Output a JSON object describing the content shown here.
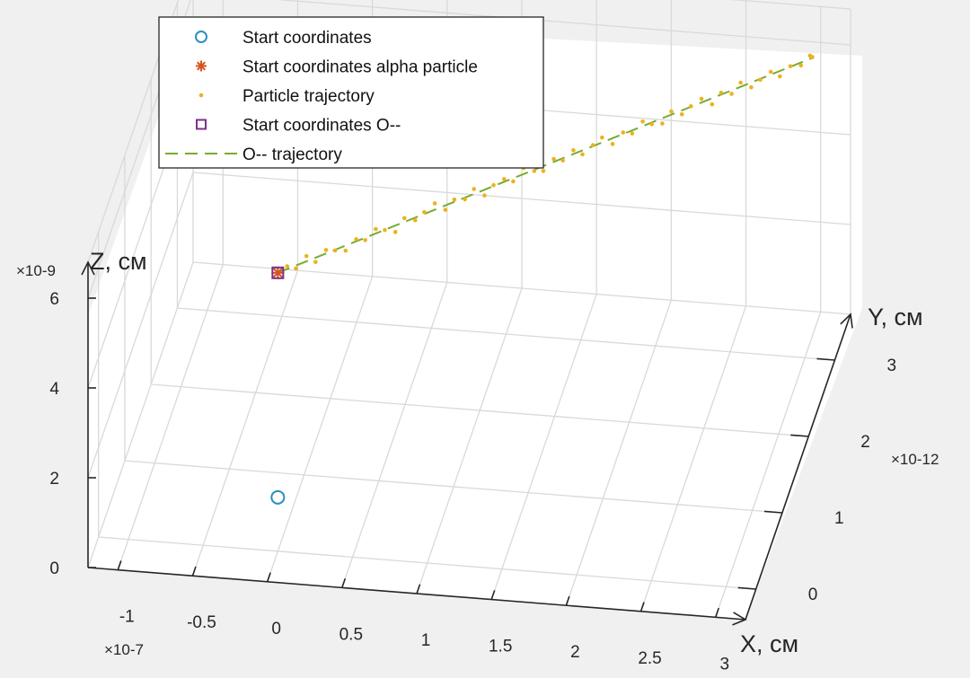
{
  "chart_data": {
    "type": "scatter",
    "projection": "3d",
    "axes": {
      "x": {
        "label": "X, см",
        "exponent": "×10-7",
        "ticks": [
          -1,
          -0.5,
          0,
          0.5,
          1,
          1.5,
          2,
          2.5,
          3
        ],
        "tick_labels": [
          "-1",
          "-0.5",
          "0",
          "0.5",
          "1",
          "1.5",
          "2",
          "2.5",
          "3"
        ],
        "lim": [
          -1.2,
          3.2
        ]
      },
      "y": {
        "label": "Y, см",
        "exponent": "×10-12",
        "ticks": [
          0,
          1,
          2,
          3
        ],
        "tick_labels": [
          "0",
          "1",
          "2",
          "3"
        ],
        "lim": [
          -0.4,
          3.6
        ]
      },
      "z": {
        "label": "Z, см",
        "exponent": "×10-9",
        "ticks": [
          0,
          2,
          4,
          6
        ],
        "tick_labels": [
          "0",
          "2",
          "4",
          "6"
        ],
        "lim": [
          0,
          6.8
        ]
      }
    },
    "grid": true,
    "legend_position": "top-left",
    "series": [
      {
        "name": "Start coordinates",
        "marker": "circle",
        "color": "#2a8fbf",
        "points": [
          [
            0,
            0,
            1.2
          ]
        ]
      },
      {
        "name": "Start coordinates alpha particle",
        "marker": "asterisk",
        "color": "#d9531e",
        "points": [
          [
            0,
            0,
            6.2
          ]
        ]
      },
      {
        "name": "Particle trajectory",
        "marker": "dot",
        "color": "#edb120",
        "points": [
          [
            0.05,
            0.07,
            6.24
          ],
          [
            0.1,
            0.12,
            6.12
          ],
          [
            0.16,
            0.18,
            6.31
          ],
          [
            0.21,
            0.24,
            6.09
          ],
          [
            0.27,
            0.3,
            6.27
          ],
          [
            0.32,
            0.36,
            6.17
          ],
          [
            0.38,
            0.42,
            6.08
          ],
          [
            0.44,
            0.48,
            6.25
          ],
          [
            0.49,
            0.54,
            6.14
          ],
          [
            0.55,
            0.6,
            6.3
          ],
          [
            0.6,
            0.66,
            6.19
          ],
          [
            0.66,
            0.72,
            6.06
          ],
          [
            0.71,
            0.78,
            6.28
          ],
          [
            0.77,
            0.85,
            6.13
          ],
          [
            0.82,
            0.91,
            6.22
          ],
          [
            0.88,
            0.97,
            6.33
          ],
          [
            0.94,
            1.03,
            6.1
          ],
          [
            0.99,
            1.09,
            6.24
          ],
          [
            1.05,
            1.15,
            6.16
          ],
          [
            1.1,
            1.21,
            6.3
          ],
          [
            1.16,
            1.27,
            6.07
          ],
          [
            1.21,
            1.33,
            6.21
          ],
          [
            1.27,
            1.39,
            6.26
          ],
          [
            1.32,
            1.45,
            6.12
          ],
          [
            1.38,
            1.51,
            6.33
          ],
          [
            1.44,
            1.57,
            6.18
          ],
          [
            1.49,
            1.63,
            6.09
          ],
          [
            1.55,
            1.69,
            6.27
          ],
          [
            1.6,
            1.75,
            6.15
          ],
          [
            1.66,
            1.81,
            6.29
          ],
          [
            1.71,
            1.87,
            6.11
          ],
          [
            1.77,
            1.93,
            6.23
          ],
          [
            1.82,
            1.99,
            6.31
          ],
          [
            1.88,
            2.05,
            6.08
          ],
          [
            1.94,
            2.11,
            6.25
          ],
          [
            1.99,
            2.17,
            6.14
          ],
          [
            2.05,
            2.23,
            6.32
          ],
          [
            2.1,
            2.29,
            6.17
          ],
          [
            2.16,
            2.35,
            6.1
          ],
          [
            2.21,
            2.41,
            6.28
          ],
          [
            2.27,
            2.47,
            6.13
          ],
          [
            2.32,
            2.53,
            6.22
          ],
          [
            2.38,
            2.59,
            6.3
          ],
          [
            2.44,
            2.65,
            6.09
          ],
          [
            2.49,
            2.71,
            6.26
          ],
          [
            2.55,
            2.77,
            6.15
          ],
          [
            2.6,
            2.83,
            6.31
          ],
          [
            2.66,
            2.89,
            6.12
          ],
          [
            2.71,
            2.95,
            6.2
          ],
          [
            2.77,
            3.01,
            6.29
          ],
          [
            2.82,
            3.07,
            6.1
          ],
          [
            2.88,
            3.13,
            6.24
          ],
          [
            2.94,
            3.19,
            6.17
          ],
          [
            2.99,
            3.25,
            6.3
          ],
          [
            3.0,
            3.28,
            6.22
          ]
        ]
      },
      {
        "name": "Start coordinates O--",
        "marker": "square",
        "color": "#7e2f8e",
        "points": [
          [
            0,
            0,
            6.2
          ]
        ]
      },
      {
        "name": "O-- trajectory",
        "marker": "dashed-line",
        "color": "#77ac30",
        "points": [
          [
            0,
            0,
            6.2
          ],
          [
            3.0,
            3.28,
            6.2
          ]
        ]
      }
    ]
  }
}
